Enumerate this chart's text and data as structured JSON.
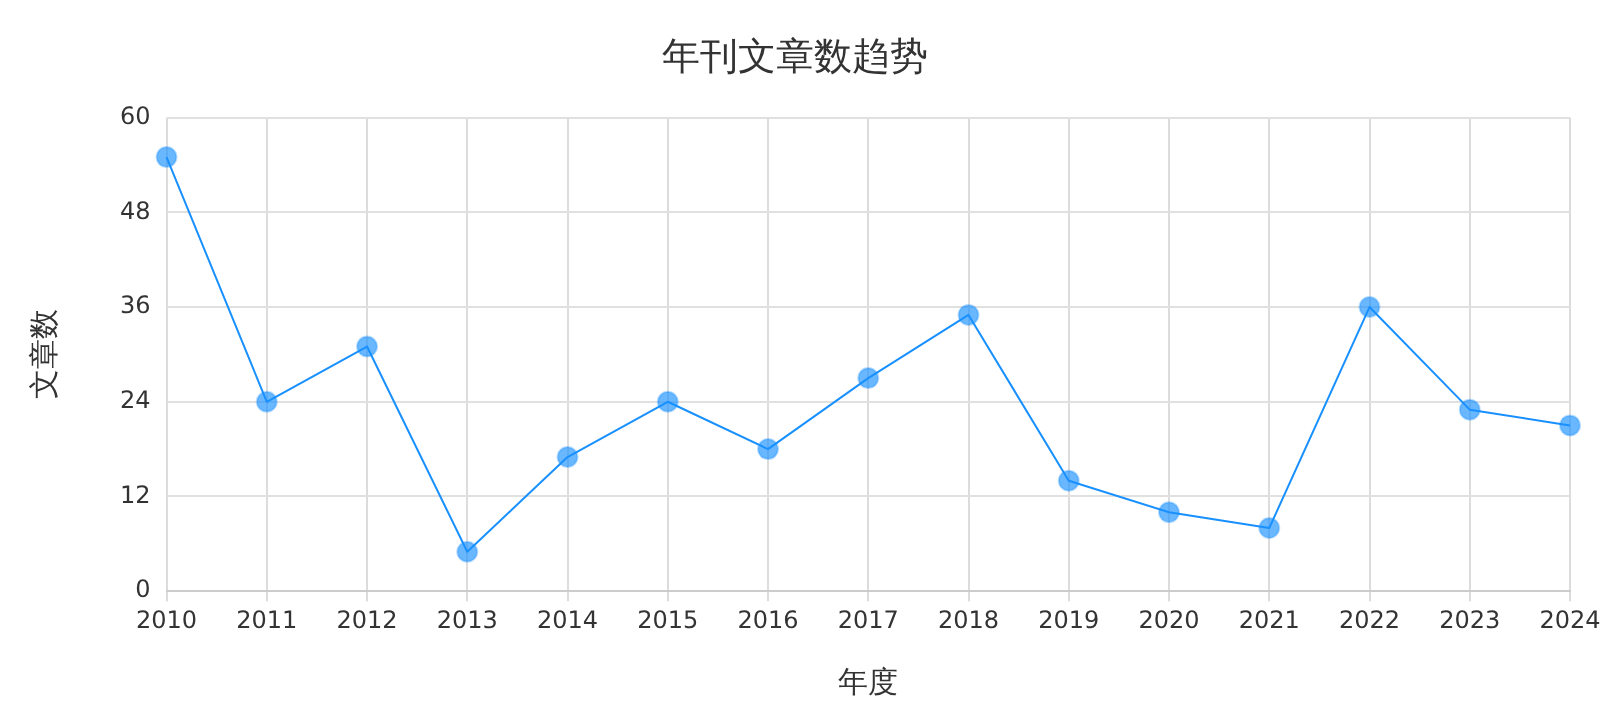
{
  "chart_data": {
    "type": "line",
    "title": "年刊文章数趋势",
    "xlabel": "年度",
    "ylabel": "文章数",
    "categories": [
      "2010",
      "2011",
      "2012",
      "2013",
      "2014",
      "2015",
      "2016",
      "2017",
      "2018",
      "2019",
      "2020",
      "2021",
      "2022",
      "2023",
      "2024"
    ],
    "series": [
      {
        "color": "#1890ff",
        "values": [
          55,
          24,
          31,
          5,
          17,
          24,
          18,
          27,
          35,
          14,
          10,
          8,
          36,
          23,
          21
        ]
      }
    ],
    "ylim": [
      0,
      60
    ],
    "yticks": [
      0,
      12,
      24,
      36,
      48,
      60
    ],
    "grid": true,
    "legend": false,
    "marker": "circle",
    "line_style": "solid"
  }
}
